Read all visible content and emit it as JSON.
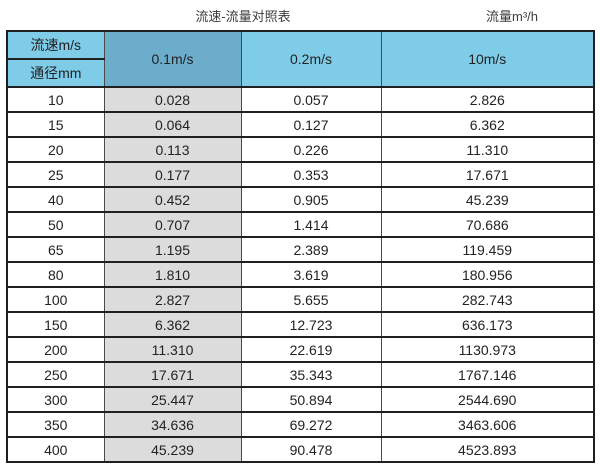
{
  "header": {
    "title": "流速-流量对照表",
    "unit_label": "流量m³/h"
  },
  "table": {
    "corner_top": "流速m/s",
    "corner_bottom": "通径mm",
    "velocity_headers": [
      "0.1m/s",
      "0.2m/s",
      "10m/s"
    ],
    "rows": [
      [
        "10",
        "0.028",
        "0.057",
        "2.826"
      ],
      [
        "15",
        "0.064",
        "0.127",
        "6.362"
      ],
      [
        "20",
        "0.113",
        "0.226",
        "11.310"
      ],
      [
        "25",
        "0.177",
        "0.353",
        "17.671"
      ],
      [
        "40",
        "0.452",
        "0.905",
        "45.239"
      ],
      [
        "50",
        "0.707",
        "1.414",
        "70.686"
      ],
      [
        "65",
        "1.195",
        "2.389",
        "119.459"
      ],
      [
        "80",
        "1.810",
        "3.619",
        "180.956"
      ],
      [
        "100",
        "2.827",
        "5.655",
        "282.743"
      ],
      [
        "150",
        "6.362",
        "12.723",
        "636.173"
      ],
      [
        "200",
        "11.310",
        "22.619",
        "1130.973"
      ],
      [
        "250",
        "17.671",
        "35.343",
        "1767.146"
      ],
      [
        "300",
        "25.447",
        "50.894",
        "2544.690"
      ],
      [
        "350",
        "34.636",
        "69.272",
        "3463.606"
      ],
      [
        "400",
        "45.239",
        "90.478",
        "4523.893"
      ]
    ]
  },
  "chart_data": {
    "type": "table",
    "title": "流速-流量对照表",
    "unit": "流量m³/h",
    "columns": [
      "通径mm",
      "0.1m/s",
      "0.2m/s",
      "10m/s"
    ],
    "rows": [
      [
        10,
        0.028,
        0.057,
        2.826
      ],
      [
        15,
        0.064,
        0.127,
        6.362
      ],
      [
        20,
        0.113,
        0.226,
        11.31
      ],
      [
        25,
        0.177,
        0.353,
        17.671
      ],
      [
        40,
        0.452,
        0.905,
        45.239
      ],
      [
        50,
        0.707,
        1.414,
        70.686
      ],
      [
        65,
        1.195,
        2.389,
        119.459
      ],
      [
        80,
        1.81,
        3.619,
        180.956
      ],
      [
        100,
        2.827,
        5.655,
        282.743
      ],
      [
        150,
        6.362,
        12.723,
        636.173
      ],
      [
        200,
        11.31,
        22.619,
        1130.973
      ],
      [
        250,
        17.671,
        35.343,
        1767.146
      ],
      [
        300,
        25.447,
        50.894,
        2544.69
      ],
      [
        350,
        34.636,
        69.272,
        3463.606
      ],
      [
        400,
        45.239,
        90.478,
        4523.893
      ]
    ]
  },
  "colors": {
    "header_blue": "#7fcce9",
    "header_dark_blue": "#6badcb",
    "highlight_column_gray": "#dcdcdc",
    "border_dark": "#1f1f1f",
    "text": "#222222"
  }
}
